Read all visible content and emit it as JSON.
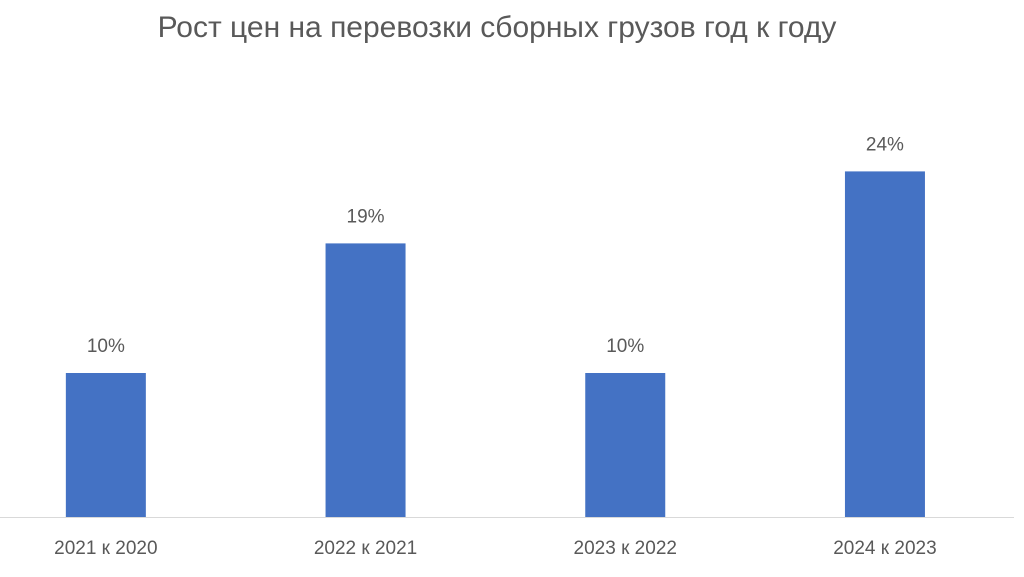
{
  "chart_data": {
    "type": "bar",
    "title": "Рост цен на перевозки сборных грузов год к году",
    "categories": [
      "2021 к 2020",
      "2022 к 2021",
      "2023 к 2022",
      "2024 к 2023"
    ],
    "values": [
      10,
      19,
      10,
      24
    ],
    "value_labels": [
      "10%",
      "19%",
      "10%",
      "24%"
    ],
    "color": "#4472c4"
  }
}
